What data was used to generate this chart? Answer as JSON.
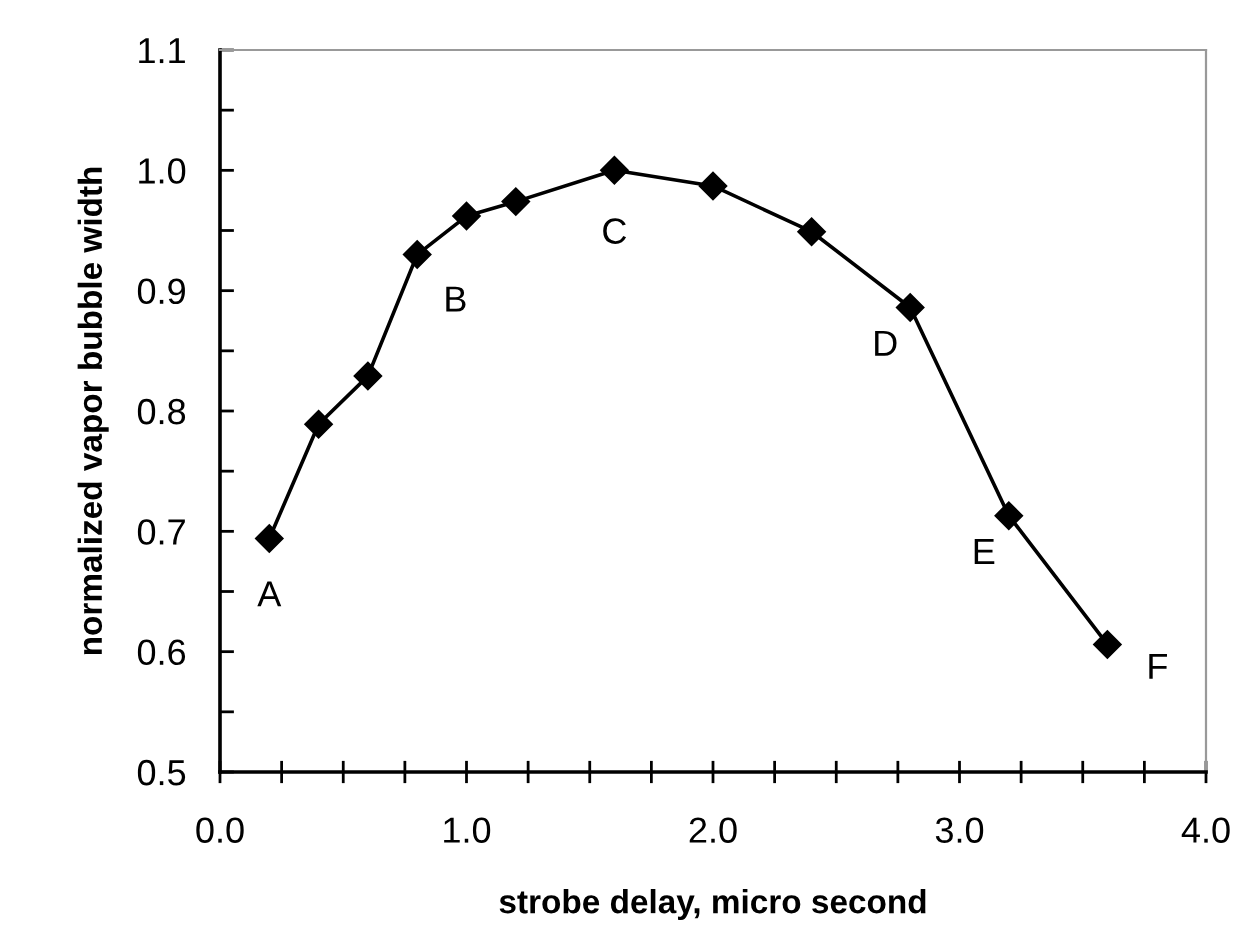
{
  "chart_data": {
    "type": "line",
    "xlabel": "strobe delay, micro second",
    "ylabel": "normalized vapor bubble width",
    "x": [
      0.2,
      0.4,
      0.6,
      0.8,
      1.0,
      1.2,
      1.6,
      2.0,
      2.4,
      2.8,
      3.2,
      3.6
    ],
    "series": [
      {
        "color": "#000000",
        "values": [
          0.694,
          0.789,
          0.829,
          0.93,
          0.962,
          0.974,
          1.0,
          0.987,
          0.949,
          0.886,
          0.713,
          0.606
        ]
      }
    ],
    "marker": "diamond",
    "line_style": "solid",
    "grid": false,
    "legend": false,
    "xlim": [
      0.0,
      4.0
    ],
    "xticks": [
      {
        "value": 0.0,
        "label": "0.0"
      },
      {
        "value": 0.25,
        "label": null
      },
      {
        "value": 0.5,
        "label": null
      },
      {
        "value": 0.75,
        "label": null
      },
      {
        "value": 1.0,
        "label": "1.0"
      },
      {
        "value": 1.25,
        "label": null
      },
      {
        "value": 1.5,
        "label": null
      },
      {
        "value": 1.75,
        "label": null
      },
      {
        "value": 2.0,
        "label": "2.0"
      },
      {
        "value": 2.25,
        "label": null
      },
      {
        "value": 2.5,
        "label": null
      },
      {
        "value": 2.75,
        "label": null
      },
      {
        "value": 3.0,
        "label": "3.0"
      },
      {
        "value": 3.25,
        "label": null
      },
      {
        "value": 3.5,
        "label": null
      },
      {
        "value": 3.75,
        "label": null
      },
      {
        "value": 4.0,
        "label": "4.0"
      }
    ],
    "ylim": [
      0.5,
      1.1
    ],
    "yticks": [
      {
        "value": 0.5,
        "label": "0.5"
      },
      {
        "value": 0.55,
        "label": null
      },
      {
        "value": 0.6,
        "label": "0.6"
      },
      {
        "value": 0.65,
        "label": null
      },
      {
        "value": 0.7,
        "label": "0.7"
      },
      {
        "value": 0.75,
        "label": null
      },
      {
        "value": 0.8,
        "label": "0.8"
      },
      {
        "value": 0.85,
        "label": null
      },
      {
        "value": 0.9,
        "label": "0.9"
      },
      {
        "value": 0.95,
        "label": null
      },
      {
        "value": 1.0,
        "label": "1.0"
      },
      {
        "value": 1.05,
        "label": null
      },
      {
        "value": 1.1,
        "label": "1.1"
      }
    ],
    "annotations": [
      {
        "text": "A",
        "x": 0.2,
        "y": 0.694
      },
      {
        "text": "B",
        "x": 1.0,
        "y": 0.962
      },
      {
        "text": "C",
        "x": 1.6,
        "y": 1.0
      },
      {
        "text": "D",
        "x": 2.8,
        "y": 0.886
      },
      {
        "text": "E",
        "x": 3.2,
        "y": 0.713
      },
      {
        "text": "F",
        "x": 3.6,
        "y": 0.606
      }
    ]
  }
}
